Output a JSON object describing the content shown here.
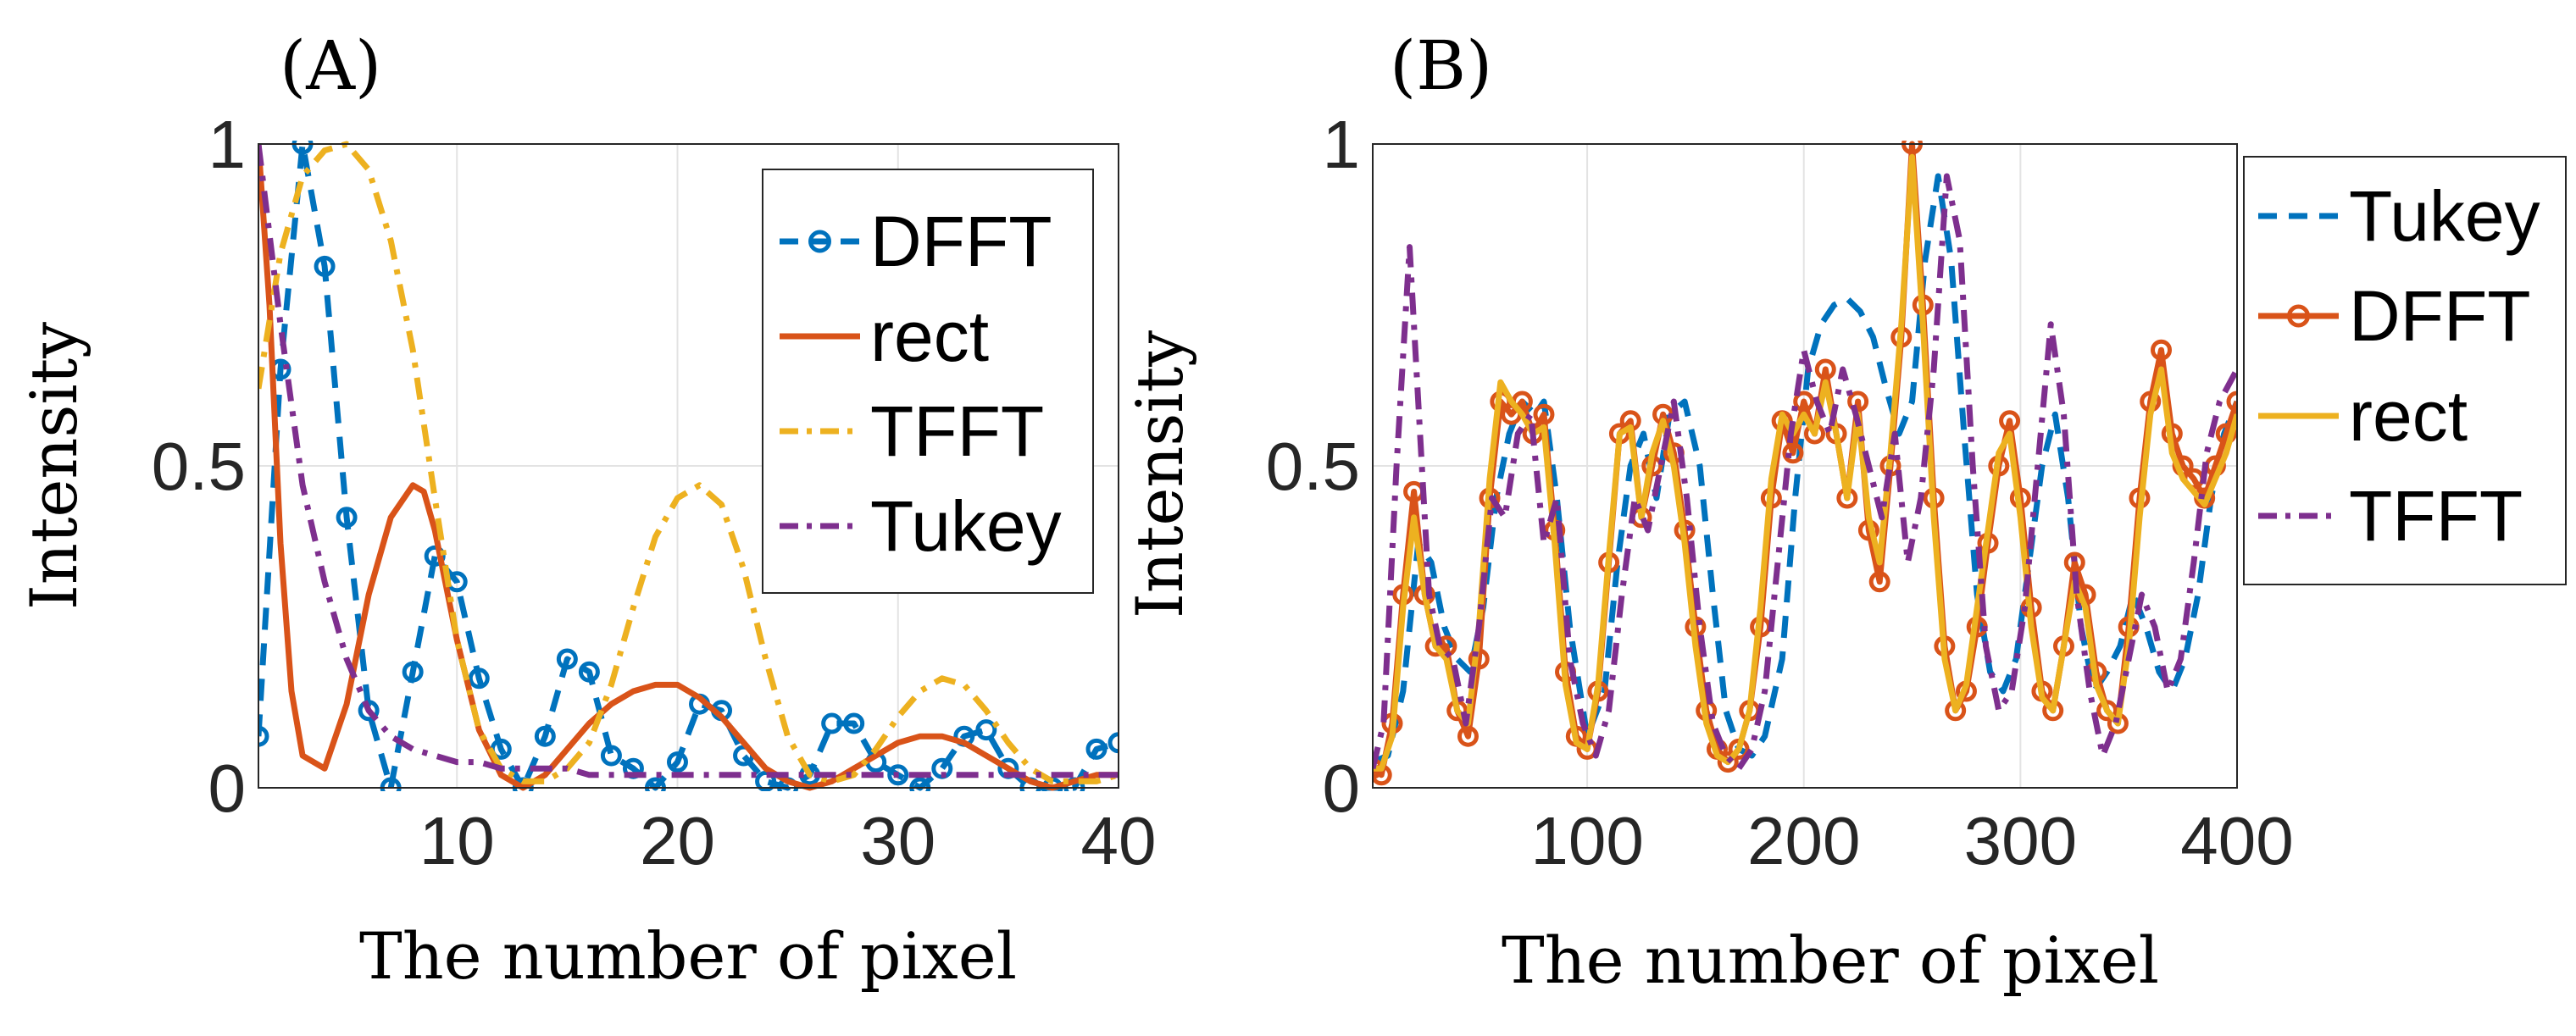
{
  "chart_data": [
    {
      "type": "line",
      "panel_label": "(A)",
      "xlabel": "The number of pixel",
      "ylabel": "Intensity",
      "xlim": [
        1,
        40
      ],
      "ylim": [
        0,
        1
      ],
      "xticks": [
        10,
        20,
        30,
        40
      ],
      "xtick_labels": [
        "10",
        "20",
        "30",
        "40"
      ],
      "yticks": [
        0,
        0.5,
        1
      ],
      "ytick_labels": [
        "0",
        "0.5",
        "1"
      ],
      "grid": true,
      "legend_position": "top-right",
      "series": [
        {
          "name": "DFFT",
          "color": "#0072BD",
          "style": "dashed",
          "marker": "circle",
          "x": [
            1,
            2,
            3,
            4,
            5,
            6,
            7,
            8,
            9,
            10,
            11,
            12,
            13,
            14,
            15,
            16,
            17,
            18,
            19,
            20,
            21,
            22,
            23,
            24,
            25,
            26,
            27,
            28,
            29,
            30,
            31,
            32,
            33,
            34,
            35,
            36,
            37,
            38,
            39,
            40
          ],
          "y": [
            0.08,
            0.65,
            1.0,
            0.81,
            0.42,
            0.12,
            0.0,
            0.18,
            0.36,
            0.32,
            0.17,
            0.06,
            0.0,
            0.08,
            0.2,
            0.18,
            0.05,
            0.03,
            0.0,
            0.04,
            0.13,
            0.12,
            0.05,
            0.01,
            0.0,
            0.02,
            0.1,
            0.1,
            0.04,
            0.02,
            0.0,
            0.03,
            0.08,
            0.09,
            0.03,
            0.0,
            0.0,
            0.0,
            0.06,
            0.07
          ]
        },
        {
          "name": "rect",
          "color": "#D95319",
          "style": "solid",
          "marker": "none",
          "x": [
            1,
            1.5,
            2,
            2.5,
            3,
            3.5,
            4,
            5,
            6,
            7,
            8,
            8.5,
            9,
            10,
            11,
            12,
            13,
            14,
            15,
            16,
            17,
            18,
            19,
            20,
            21,
            22,
            23,
            24,
            25,
            26,
            27,
            28,
            29,
            30,
            31,
            32,
            33,
            34,
            35,
            36,
            37,
            38,
            39,
            40
          ],
          "y": [
            1.0,
            0.75,
            0.38,
            0.15,
            0.05,
            0.04,
            0.03,
            0.13,
            0.3,
            0.42,
            0.47,
            0.46,
            0.4,
            0.23,
            0.09,
            0.02,
            0.0,
            0.02,
            0.06,
            0.1,
            0.13,
            0.15,
            0.16,
            0.16,
            0.14,
            0.11,
            0.07,
            0.03,
            0.01,
            0.0,
            0.01,
            0.03,
            0.05,
            0.07,
            0.08,
            0.08,
            0.07,
            0.05,
            0.03,
            0.01,
            0.0,
            0.01,
            0.02,
            0.02
          ]
        },
        {
          "name": "TFFT",
          "color": "#EDB120",
          "style": "dashdot",
          "marker": "none",
          "x": [
            1,
            2,
            3,
            4,
            5,
            6,
            7,
            8,
            9,
            10,
            11,
            12,
            13,
            14,
            15,
            16,
            17,
            18,
            19,
            20,
            21,
            22,
            23,
            24,
            25,
            26,
            27,
            28,
            29,
            30,
            31,
            32,
            33,
            34,
            35,
            36,
            37,
            38,
            39,
            40
          ],
          "y": [
            0.62,
            0.83,
            0.95,
            0.99,
            1.0,
            0.96,
            0.85,
            0.68,
            0.45,
            0.23,
            0.09,
            0.03,
            0.01,
            0.01,
            0.03,
            0.07,
            0.16,
            0.28,
            0.39,
            0.45,
            0.47,
            0.44,
            0.34,
            0.2,
            0.08,
            0.02,
            0.01,
            0.02,
            0.06,
            0.11,
            0.15,
            0.17,
            0.16,
            0.12,
            0.07,
            0.03,
            0.01,
            0.01,
            0.01,
            0.02
          ]
        },
        {
          "name": "Tukey",
          "color": "#7E2F8E",
          "style": "dashdot",
          "marker": "none",
          "x": [
            1,
            2,
            3,
            4,
            5,
            6,
            7,
            8,
            9,
            10,
            11,
            12,
            13,
            14,
            15,
            16,
            17,
            18,
            19,
            20,
            21,
            22,
            23,
            24,
            25,
            26,
            27,
            28,
            29,
            30,
            31,
            32,
            33,
            34,
            35,
            36,
            37,
            38,
            39,
            40
          ],
          "y": [
            1.0,
            0.72,
            0.47,
            0.32,
            0.2,
            0.12,
            0.08,
            0.06,
            0.05,
            0.04,
            0.04,
            0.03,
            0.03,
            0.03,
            0.03,
            0.02,
            0.02,
            0.02,
            0.02,
            0.02,
            0.02,
            0.02,
            0.02,
            0.02,
            0.02,
            0.02,
            0.02,
            0.02,
            0.02,
            0.02,
            0.02,
            0.02,
            0.02,
            0.02,
            0.02,
            0.02,
            0.02,
            0.02,
            0.02,
            0.02
          ]
        }
      ]
    },
    {
      "type": "line",
      "panel_label": "(B)",
      "xlabel": "The number of pixel",
      "ylabel": "Intensity",
      "xlim": [
        1,
        400
      ],
      "ylim": [
        0,
        1
      ],
      "xticks": [
        100,
        200,
        300,
        400
      ],
      "xtick_labels": [
        "100",
        "200",
        "300",
        "400"
      ],
      "yticks": [
        0,
        0.5,
        1
      ],
      "ytick_labels": [
        "0",
        "0.5",
        "1"
      ],
      "grid": true,
      "legend_position": "outside-top-right",
      "series": [
        {
          "name": "Tukey",
          "color": "#0072BD",
          "style": "dashed",
          "marker": "none",
          "x": [
            1,
            8,
            15,
            22,
            28,
            34,
            40,
            46,
            52,
            58,
            64,
            70,
            76,
            80,
            86,
            92,
            100,
            108,
            114,
            120,
            126,
            132,
            138,
            145,
            152,
            158,
            164,
            170,
            176,
            182,
            190,
            196,
            202,
            208,
            214,
            220,
            226,
            232,
            238,
            244,
            250,
            256,
            262,
            268,
            274,
            280,
            286,
            292,
            298,
            304,
            310,
            316,
            322,
            328,
            334,
            340,
            346,
            352,
            358,
            364,
            370,
            376,
            382,
            388,
            394,
            400
          ],
          "y": [
            0.04,
            0.05,
            0.15,
            0.38,
            0.35,
            0.25,
            0.2,
            0.18,
            0.28,
            0.45,
            0.55,
            0.6,
            0.58,
            0.6,
            0.45,
            0.25,
            0.08,
            0.15,
            0.35,
            0.5,
            0.55,
            0.45,
            0.58,
            0.6,
            0.5,
            0.3,
            0.12,
            0.06,
            0.05,
            0.08,
            0.2,
            0.45,
            0.65,
            0.72,
            0.75,
            0.76,
            0.74,
            0.7,
            0.62,
            0.55,
            0.6,
            0.82,
            0.95,
            0.82,
            0.55,
            0.3,
            0.18,
            0.15,
            0.2,
            0.35,
            0.5,
            0.58,
            0.45,
            0.25,
            0.15,
            0.18,
            0.22,
            0.3,
            0.25,
            0.18,
            0.15,
            0.2,
            0.3,
            0.45,
            0.55,
            0.6
          ]
        },
        {
          "name": "DFFT",
          "color": "#D95319",
          "style": "solid",
          "marker": "circle",
          "x": [
            1,
            5,
            10,
            15,
            20,
            25,
            30,
            35,
            40,
            45,
            50,
            55,
            60,
            65,
            70,
            75,
            80,
            85,
            90,
            95,
            100,
            105,
            110,
            115,
            120,
            125,
            130,
            135,
            140,
            145,
            150,
            155,
            160,
            165,
            170,
            175,
            180,
            185,
            190,
            195,
            200,
            205,
            210,
            215,
            220,
            225,
            230,
            235,
            240,
            245,
            250,
            255,
            260,
            265,
            270,
            275,
            280,
            285,
            290,
            295,
            300,
            305,
            310,
            315,
            320,
            325,
            330,
            335,
            340,
            345,
            350,
            355,
            360,
            365,
            370,
            375,
            380,
            385,
            390,
            395,
            400
          ],
          "y": [
            0.03,
            0.02,
            0.1,
            0.3,
            0.46,
            0.3,
            0.22,
            0.22,
            0.12,
            0.08,
            0.2,
            0.45,
            0.6,
            0.58,
            0.6,
            0.55,
            0.58,
            0.4,
            0.18,
            0.08,
            0.06,
            0.15,
            0.35,
            0.55,
            0.57,
            0.42,
            0.5,
            0.58,
            0.52,
            0.4,
            0.25,
            0.12,
            0.06,
            0.04,
            0.06,
            0.12,
            0.25,
            0.45,
            0.57,
            0.52,
            0.6,
            0.55,
            0.65,
            0.55,
            0.45,
            0.6,
            0.4,
            0.32,
            0.5,
            0.7,
            1.0,
            0.75,
            0.45,
            0.22,
            0.12,
            0.15,
            0.25,
            0.38,
            0.5,
            0.57,
            0.45,
            0.28,
            0.15,
            0.12,
            0.22,
            0.35,
            0.3,
            0.18,
            0.12,
            0.1,
            0.25,
            0.45,
            0.6,
            0.68,
            0.55,
            0.5,
            0.48,
            0.45,
            0.5,
            0.55,
            0.6
          ]
        },
        {
          "name": "rect",
          "color": "#EDB120",
          "style": "solid",
          "marker": "none",
          "x": [
            1,
            5,
            10,
            15,
            20,
            25,
            30,
            35,
            40,
            45,
            50,
            55,
            60,
            65,
            70,
            75,
            80,
            85,
            90,
            95,
            100,
            105,
            110,
            115,
            120,
            125,
            130,
            135,
            140,
            145,
            150,
            155,
            160,
            165,
            170,
            175,
            180,
            185,
            190,
            195,
            200,
            205,
            210,
            215,
            220,
            225,
            230,
            235,
            240,
            245,
            250,
            255,
            260,
            265,
            270,
            275,
            280,
            285,
            290,
            295,
            300,
            305,
            310,
            315,
            320,
            325,
            330,
            335,
            340,
            345,
            350,
            355,
            360,
            365,
            370,
            375,
            380,
            385,
            390,
            395,
            400
          ],
          "y": [
            0.03,
            0.03,
            0.08,
            0.28,
            0.42,
            0.3,
            0.22,
            0.2,
            0.12,
            0.1,
            0.25,
            0.48,
            0.63,
            0.6,
            0.58,
            0.55,
            0.56,
            0.38,
            0.16,
            0.07,
            0.06,
            0.16,
            0.36,
            0.55,
            0.56,
            0.42,
            0.52,
            0.57,
            0.5,
            0.38,
            0.22,
            0.1,
            0.05,
            0.04,
            0.06,
            0.12,
            0.28,
            0.48,
            0.58,
            0.55,
            0.58,
            0.55,
            0.63,
            0.55,
            0.45,
            0.58,
            0.42,
            0.35,
            0.52,
            0.72,
            0.98,
            0.72,
            0.42,
            0.2,
            0.12,
            0.16,
            0.28,
            0.4,
            0.52,
            0.55,
            0.42,
            0.25,
            0.14,
            0.12,
            0.22,
            0.32,
            0.28,
            0.16,
            0.12,
            0.1,
            0.22,
            0.42,
            0.58,
            0.65,
            0.52,
            0.48,
            0.46,
            0.44,
            0.48,
            0.52,
            0.58
          ]
        },
        {
          "name": "TFFT",
          "color": "#7E2F8E",
          "style": "dashdot",
          "marker": "none",
          "x": [
            1,
            6,
            12,
            18,
            22,
            27,
            32,
            38,
            44,
            50,
            56,
            62,
            68,
            74,
            80,
            86,
            92,
            98,
            104,
            110,
            116,
            122,
            128,
            134,
            140,
            146,
            152,
            158,
            164,
            170,
            176,
            182,
            188,
            194,
            200,
            206,
            212,
            218,
            224,
            230,
            236,
            242,
            248,
            254,
            260,
            266,
            272,
            278,
            284,
            290,
            296,
            302,
            308,
            314,
            320,
            326,
            332,
            338,
            344,
            350,
            356,
            362,
            368,
            374,
            380,
            386,
            392,
            400
          ],
          "y": [
            0.03,
            0.1,
            0.5,
            0.84,
            0.6,
            0.3,
            0.22,
            0.2,
            0.1,
            0.25,
            0.45,
            0.42,
            0.55,
            0.58,
            0.38,
            0.45,
            0.2,
            0.1,
            0.05,
            0.12,
            0.3,
            0.45,
            0.4,
            0.5,
            0.6,
            0.45,
            0.25,
            0.1,
            0.05,
            0.03,
            0.06,
            0.15,
            0.35,
            0.55,
            0.68,
            0.6,
            0.55,
            0.65,
            0.58,
            0.5,
            0.42,
            0.55,
            0.35,
            0.45,
            0.65,
            0.95,
            0.85,
            0.5,
            0.22,
            0.12,
            0.15,
            0.28,
            0.5,
            0.72,
            0.58,
            0.3,
            0.15,
            0.05,
            0.1,
            0.2,
            0.3,
            0.25,
            0.15,
            0.2,
            0.35,
            0.52,
            0.6,
            0.65
          ]
        }
      ]
    }
  ]
}
